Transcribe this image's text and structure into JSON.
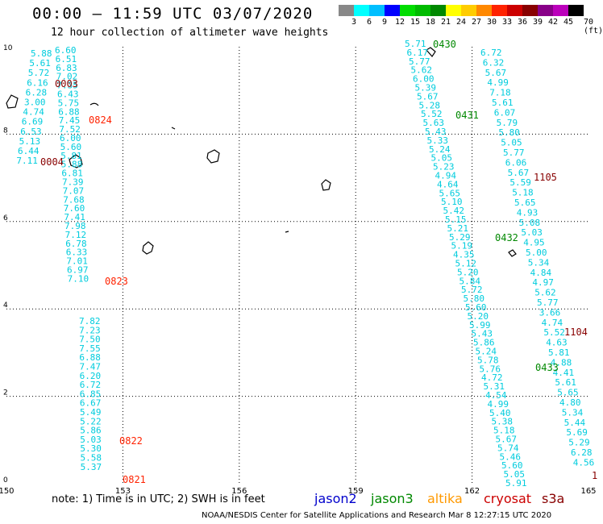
{
  "header": {
    "title": "00:00 – 11:59 UTC 03/07/2020",
    "subtitle": "12 hour collection of altimeter wave heights"
  },
  "colorbar": {
    "colors": [
      "#888888",
      "#00ffff",
      "#00bfff",
      "#0000ff",
      "#00dd00",
      "#00bb00",
      "#008800",
      "#ffff00",
      "#ffcc00",
      "#ff8800",
      "#ff2200",
      "#cc0000",
      "#880000",
      "#880088",
      "#bb00bb",
      "#000000"
    ],
    "ticks": [
      "3",
      "6",
      "9",
      "12",
      "15",
      "18",
      "21",
      "24",
      "27",
      "30",
      "33",
      "36",
      "39",
      "42",
      "45",
      "70 (ft)"
    ]
  },
  "axes": {
    "x_ticks": [
      "150",
      "153",
      "156",
      "159",
      "162",
      "165"
    ],
    "y_ticks": [
      "0",
      "2",
      "4",
      "6",
      "8",
      "10"
    ]
  },
  "passes": {
    "left": {
      "col1": [
        "5.88",
        "5.61",
        "5.72",
        "6.16",
        "6.28",
        "3.00",
        "4.74",
        "6.69",
        "6.53",
        "5.13",
        "6.44",
        "7.11"
      ],
      "col2": [
        "6.60",
        "6.51",
        "6.83",
        "7.02",
        "7.35",
        "6.43",
        "5.75",
        "6.88",
        "7.45",
        "7.52",
        "6.00",
        "5.60",
        "5.81",
        "5.88",
        "6.81",
        "7.39",
        "7.07",
        "7.68",
        "7.60",
        "7.41",
        "7.98",
        "7.12",
        "6.78",
        "6.33",
        "7.01",
        "6.97",
        "7.10"
      ],
      "col3": [
        "7.82",
        "7.23",
        "7.50",
        "7.55",
        "6.88",
        "7.47",
        "6.20",
        "6.72",
        "6.85",
        "6.67",
        "5.49",
        "5.22",
        "5.86",
        "5.03",
        "5.30",
        "5.58",
        "5.37"
      ]
    },
    "mid": [
      "5.71",
      "6.17",
      "5.77",
      "5.62",
      "6.00",
      "5.39",
      "5.67",
      "5.28",
      "5.52",
      "5.63",
      "5.43",
      "5.33",
      "5.24",
      "5.05",
      "5.23",
      "4.94",
      "4.64",
      "5.65",
      "5.10",
      "5.42",
      "5.15",
      "5.21",
      "5.29",
      "5.19",
      "4.35",
      "5.12",
      "5.20",
      "5.84",
      "5.72",
      "5.80",
      "5.60",
      "5.20",
      "5.99",
      "5.43",
      "5.86",
      "5.24",
      "5.78",
      "5.76",
      "4.72",
      "5.31",
      "4.54",
      "4.99",
      "5.40",
      "5.38",
      "5.18",
      "5.67",
      "5.74",
      "5.46",
      "5.60",
      "5.05",
      "5.91"
    ],
    "right": [
      "6.72",
      "6.32",
      "5.67",
      "4.99",
      "7.18",
      "5.61",
      "6.07",
      "5.79",
      "5.80",
      "5.05",
      "5.77",
      "6.06",
      "5.67",
      "5.59",
      "5.18",
      "5.65",
      "4.93",
      "5.08",
      "5.03",
      "4.95",
      "5.00",
      "5.34",
      "4.84",
      "4.97",
      "5.62",
      "5.77",
      "3.66",
      "4.74",
      "5.52",
      "4.63",
      "5.81",
      "4.88",
      "4.41",
      "5.61",
      "5.65",
      "4.80",
      "5.34",
      "5.44",
      "5.69",
      "5.29",
      "6.28",
      "4.56"
    ]
  },
  "time_labels": [
    {
      "text": "0003",
      "color": "#880000"
    },
    {
      "text": "0824",
      "color": "#ff2200"
    },
    {
      "text": "0004",
      "color": "#880000"
    },
    {
      "text": "0823",
      "color": "#ff2200"
    },
    {
      "text": "0822",
      "color": "#ff2200"
    },
    {
      "text": "0821",
      "color": "#ff2200"
    },
    {
      "text": "0430",
      "color": "#008800"
    },
    {
      "text": "0431",
      "color": "#008800"
    },
    {
      "text": "0432",
      "color": "#008800"
    },
    {
      "text": "0433",
      "color": "#008800"
    },
    {
      "text": "1105",
      "color": "#880000"
    },
    {
      "text": "1104",
      "color": "#880000"
    },
    {
      "text": "1",
      "color": "#880000"
    }
  ],
  "footer": {
    "note": "note:  1) Time is in UTC;  2) SWH is in feet",
    "satellites": [
      {
        "name": "jason2",
        "color": "#0000cc"
      },
      {
        "name": "jason3",
        "color": "#008800"
      },
      {
        "name": "altika",
        "color": "#ff9900"
      },
      {
        "name": "cryosat",
        "color": "#cc0000"
      },
      {
        "name": "s3a",
        "color": "#880000"
      }
    ],
    "credit": "NOAA/NESDIS Center for Satellite Applications and Research    Mar  8 12:27:15 UTC 2020"
  }
}
